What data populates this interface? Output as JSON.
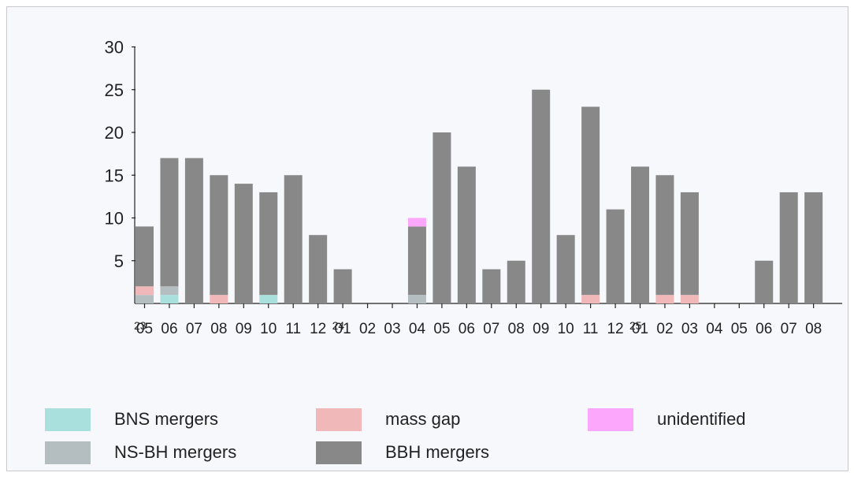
{
  "colors": {
    "panel_bg": "#f7f8fb",
    "axis": "#222222",
    "BNS": "#a9e0dd",
    "NSBH": "#b4bec0",
    "massgap": "#f0b8b8",
    "unidentified": "#fca6fc",
    "BBH": "#888888"
  },
  "chart_data": {
    "type": "bar",
    "stacked": true,
    "categories": [
      "05",
      "06",
      "07",
      "08",
      "09",
      "10",
      "11",
      "12",
      "01",
      "02",
      "03",
      "04",
      "05",
      "06",
      "07",
      "08",
      "09",
      "10",
      "11",
      "12",
      "01",
      "02",
      "03",
      "04",
      "05",
      "06",
      "07",
      "08"
    ],
    "year_labels": [
      {
        "index": 0,
        "label": "23"
      },
      {
        "index": 8,
        "label": "24"
      },
      {
        "index": 20,
        "label": "25"
      }
    ],
    "ylim": [
      0,
      30
    ],
    "yticks": [
      5,
      10,
      15,
      20,
      25,
      30
    ],
    "grid": false,
    "legend_position": "bottom",
    "series": [
      {
        "name": "BNS mergers",
        "key": "BNS",
        "values": [
          0,
          1,
          0,
          0,
          0,
          1,
          0,
          0,
          0,
          0,
          0,
          0,
          0,
          0,
          0,
          0,
          0,
          0,
          0,
          0,
          0,
          0,
          0,
          0,
          0,
          0,
          0,
          0
        ]
      },
      {
        "name": "NS-BH mergers",
        "key": "NSBH",
        "values": [
          1,
          1,
          0,
          0,
          0,
          0,
          0,
          0,
          0,
          0,
          0,
          1,
          0,
          0,
          0,
          0,
          0,
          0,
          0,
          0,
          0,
          0,
          0,
          0,
          0,
          0,
          0,
          0
        ]
      },
      {
        "name": "mass gap",
        "key": "massgap",
        "values": [
          1,
          0,
          0,
          1,
          0,
          0,
          0,
          0,
          0,
          0,
          0,
          0,
          0,
          0,
          0,
          0,
          0,
          0,
          1,
          0,
          0,
          1,
          1,
          0,
          0,
          0,
          0,
          0
        ]
      },
      {
        "name": "BBH mergers",
        "key": "BBH",
        "values": [
          7,
          15,
          17,
          14,
          14,
          12,
          15,
          8,
          4,
          0,
          0,
          8,
          20,
          16,
          4,
          5,
          25,
          8,
          22,
          11,
          16,
          14,
          12,
          0,
          0,
          5,
          13,
          13
        ]
      },
      {
        "name": "unidentified",
        "key": "unidentified",
        "values": [
          0,
          0,
          0,
          0,
          0,
          0,
          0,
          0,
          0,
          0,
          0,
          1,
          0,
          0,
          0,
          0,
          0,
          0,
          0,
          0,
          0,
          0,
          0,
          0,
          0,
          0,
          0,
          0
        ]
      }
    ],
    "legend": [
      {
        "key": "BNS",
        "label": "BNS mergers"
      },
      {
        "key": "massgap",
        "label": "mass gap"
      },
      {
        "key": "unidentified",
        "label": "unidentified"
      },
      {
        "key": "NSBH",
        "label": "NS-BH mergers"
      },
      {
        "key": "BBH",
        "label": "BBH mergers"
      }
    ]
  }
}
